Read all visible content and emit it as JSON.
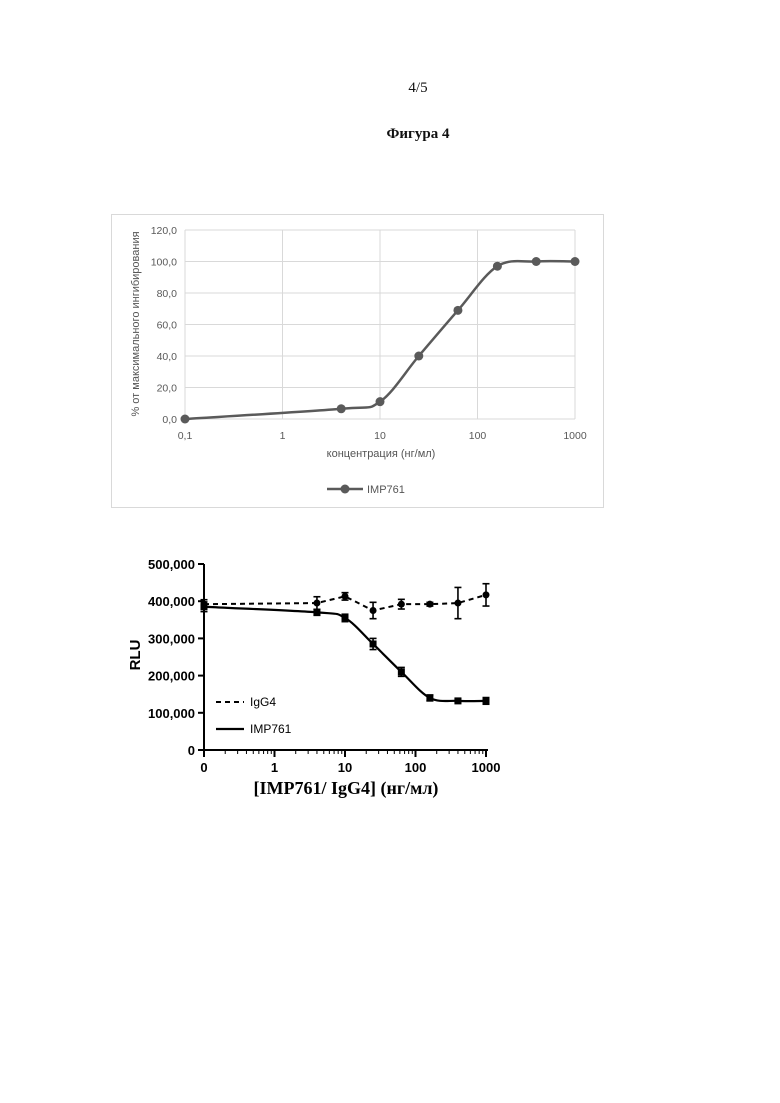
{
  "page": {
    "page_number": "4/5",
    "figure_title": "Фигура 4"
  },
  "chart_data": [
    {
      "type": "line",
      "xlabel": "концентрация (нг/мл)",
      "ylabel": "% от максимального ингибирования",
      "x_scale": "log",
      "xlim": [
        0.1,
        1000
      ],
      "ylim": [
        0,
        120
      ],
      "x_ticks": [
        0.1,
        1,
        10,
        100,
        1000
      ],
      "x_tick_labels": [
        "0,1",
        "1",
        "10",
        "100",
        "1000"
      ],
      "y_ticks": [
        0,
        20,
        40,
        60,
        80,
        100,
        120
      ],
      "y_tick_labels": [
        "0,0",
        "20,0",
        "40,0",
        "60,0",
        "80,0",
        "100,0",
        "120,0"
      ],
      "grid": true,
      "legend_position": "bottom-center",
      "series": [
        {
          "name": "IMP761",
          "color": "#5a5a5a",
          "x": [
            0.1,
            4,
            10,
            25,
            63,
            160,
            400,
            1000
          ],
          "y": [
            0,
            6.5,
            11,
            40,
            69,
            97,
            100,
            100
          ]
        }
      ]
    },
    {
      "type": "line",
      "xlabel": "[IMP761/ IgG4] (нг/мл)",
      "ylabel": "RLU",
      "x_scale": "log",
      "xlim": [
        0.1,
        1000
      ],
      "ylim": [
        0,
        500000
      ],
      "x_ticks": [
        0.1,
        1,
        10,
        100,
        1000
      ],
      "x_tick_labels": [
        "0",
        "1",
        "10",
        "100",
        "1000"
      ],
      "y_ticks": [
        0,
        100000,
        200000,
        300000,
        400000,
        500000
      ],
      "y_tick_labels": [
        "0",
        "100,000",
        "200,000",
        "300,000",
        "400,000",
        "500,000"
      ],
      "grid": false,
      "legend_position": "bottom-left",
      "series": [
        {
          "name": "IgG4",
          "line_style": "dashed",
          "marker": "circle",
          "color": "#000000",
          "x": [
            0.1,
            4,
            10,
            25,
            63,
            160,
            400,
            1000
          ],
          "y": [
            392000,
            395000,
            413000,
            375000,
            392000,
            392000,
            395000,
            417000
          ],
          "error": [
            12000,
            17000,
            10000,
            22000,
            13000,
            5000,
            42000,
            30000
          ]
        },
        {
          "name": "IMP761",
          "line_style": "solid",
          "marker": "square",
          "color": "#000000",
          "x": [
            0.1,
            4,
            10,
            25,
            63,
            160,
            400,
            1000
          ],
          "y": [
            385000,
            370000,
            355000,
            285000,
            210000,
            140000,
            132000,
            132000
          ],
          "error": [
            13000,
            8000,
            10000,
            15000,
            12000,
            8000,
            5000,
            9000
          ]
        }
      ]
    }
  ]
}
